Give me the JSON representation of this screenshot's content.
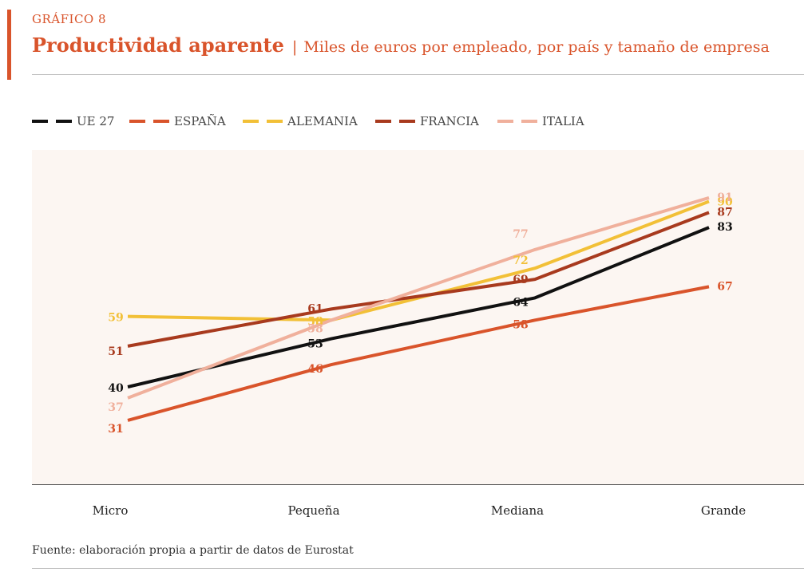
{
  "header": {
    "kicker": "GRÁFICO 8",
    "title": "Productividad aparente",
    "separator": "|",
    "subtitle": "Miles de euros por empleado, por país y tamaño de empresa"
  },
  "source": "Fuente: elaboración propia a partir de datos de Eurostat",
  "colors": {
    "accent": "#d9542b",
    "plot_background": "#fcf6f2"
  },
  "chart_data": {
    "type": "line",
    "title": "Productividad aparente",
    "subtitle": "Miles de euros por empleado, por país y tamaño de empresa",
    "xlabel": "",
    "ylabel": "",
    "grid": false,
    "legend_position": "top-left",
    "categories": [
      "Micro",
      "Pequeña",
      "Mediana",
      "Grande"
    ],
    "ylim": [
      20,
      100
    ],
    "series": [
      {
        "name": "UE 27",
        "color": "#111111",
        "values": [
          40,
          53,
          64,
          83
        ]
      },
      {
        "name": "ESPAÑA",
        "color": "#d9542b",
        "values": [
          31,
          46,
          58,
          67
        ]
      },
      {
        "name": "ALEMANIA",
        "color": "#f2c037",
        "values": [
          59,
          58,
          72,
          90
        ]
      },
      {
        "name": "FRANCIA",
        "color": "#a83a1e",
        "values": [
          51,
          61,
          69,
          87
        ]
      },
      {
        "name": "ITALIA",
        "color": "#f0b09c",
        "values": [
          37,
          58,
          77,
          91
        ]
      }
    ]
  }
}
